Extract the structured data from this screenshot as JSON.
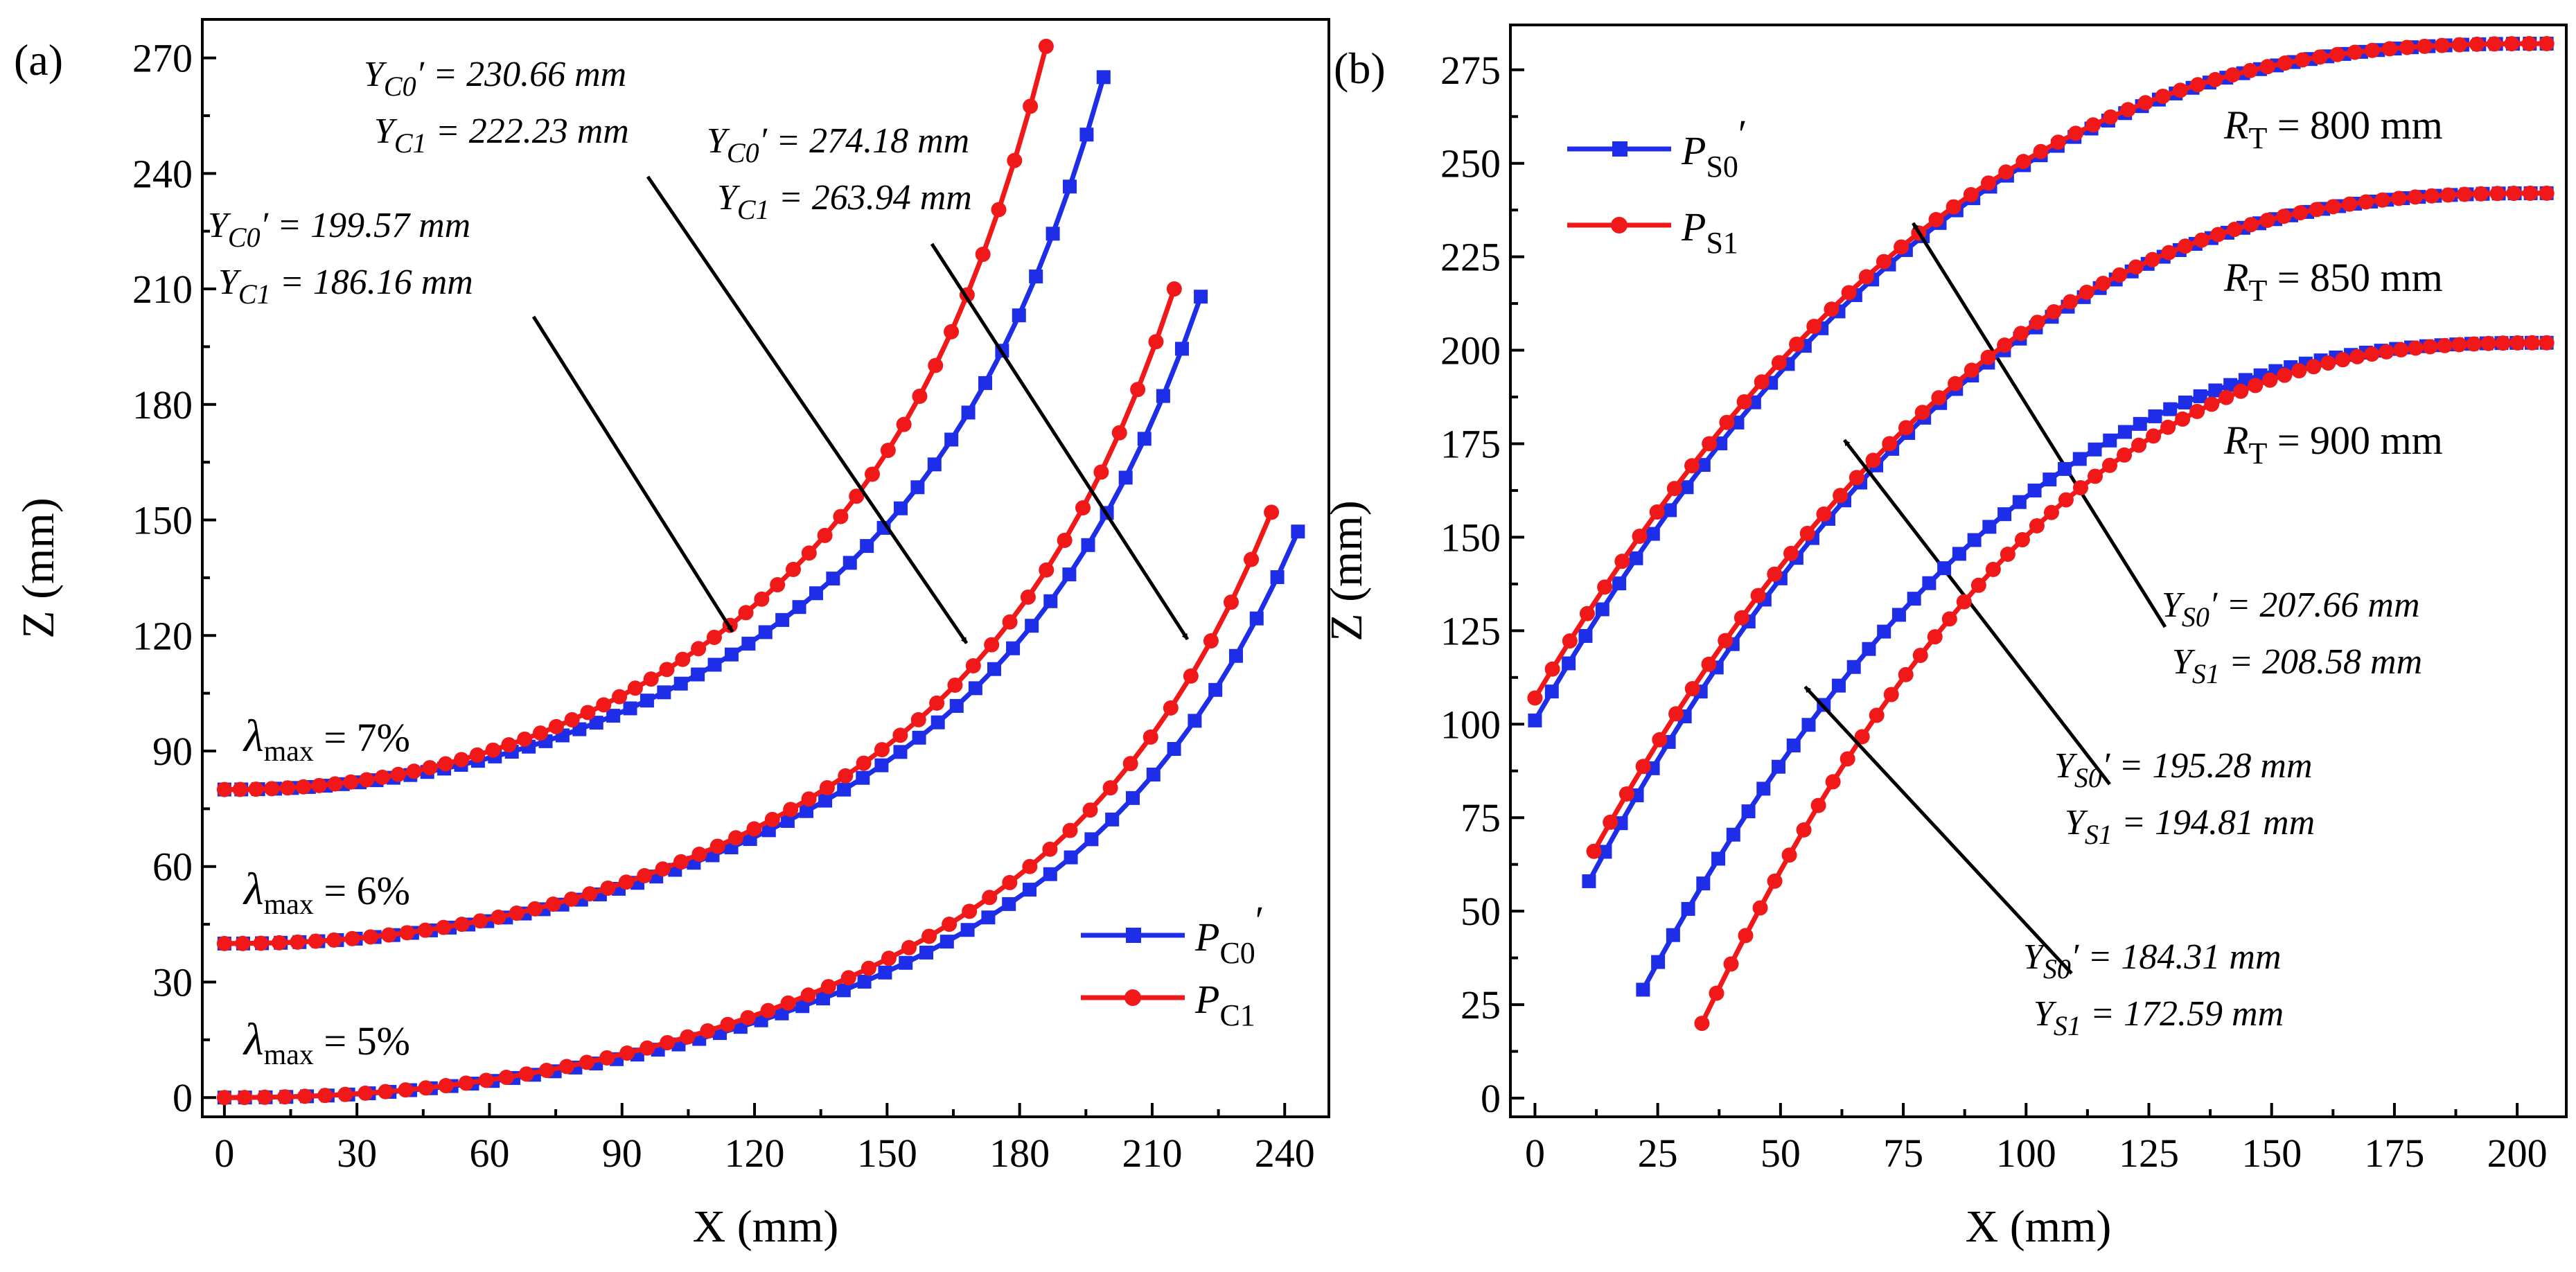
{
  "chart_data": [
    {
      "type": "line",
      "panel": "(a)",
      "xlabel": "X (mm)",
      "ylabel": "Z (mm)",
      "xlim": [
        -5,
        250
      ],
      "ylim": [
        -5,
        280
      ],
      "xticks": [
        0,
        30,
        60,
        90,
        120,
        150,
        180,
        210,
        240
      ],
      "yticks": [
        0,
        30,
        60,
        90,
        120,
        150,
        180,
        210,
        240,
        270
      ],
      "legend": [
        {
          "name": "P_C0'",
          "base": "P",
          "sub": "C0",
          "prime": "′",
          "color": "#1e2ee8",
          "marker": "square"
        },
        {
          "name": "P_C1",
          "base": "P",
          "sub": "C1",
          "prime": "",
          "color": "#f01818",
          "marker": "circle"
        }
      ],
      "curves": [
        {
          "label": {
            "sym": "λ",
            "sub": "max",
            "text": " = 7%"
          },
          "base_z": 80,
          "blue": {
            "x_end": 199,
            "z_end": 265
          },
          "red": {
            "x_end": 186,
            "z_end": 273
          },
          "annotation": {
            "l1_var": "Y",
            "l1_sub": "C0",
            "l1_val": "′ = 199.57 mm",
            "l2_var": "Y",
            "l2_sub": "C1",
            "l2_val": " = 186.16 mm"
          },
          "arrow_to": {
            "x": 115,
            "z": 121
          }
        },
        {
          "label": {
            "sym": "λ",
            "sub": "max",
            "text": " = 6%"
          },
          "base_z": 40,
          "blue": {
            "x_end": 221,
            "z_end": 208
          },
          "red": {
            "x_end": 215,
            "z_end": 210
          },
          "annotation": {
            "l1_var": "Y",
            "l1_sub": "C0",
            "l1_val": "′ = 230.66 mm",
            "l2_var": "Y",
            "l2_sub": "C1",
            "l2_val": " = 222.23 mm"
          },
          "arrow_to": {
            "x": 168,
            "z": 118
          }
        },
        {
          "label": {
            "sym": "λ",
            "sub": "max",
            "text": " = 5%"
          },
          "base_z": 0,
          "blue": {
            "x_end": 243,
            "z_end": 147
          },
          "red": {
            "x_end": 237,
            "z_end": 152
          },
          "annotation": {
            "l1_var": "Y",
            "l1_sub": "C0",
            "l1_val": "′ = 274.18 mm",
            "l2_var": "Y",
            "l2_sub": "C1",
            "l2_val": " = 263.94 mm"
          },
          "arrow_to": {
            "x": 218,
            "z": 119
          }
        }
      ]
    },
    {
      "type": "line",
      "panel": "(b)",
      "xlabel": "X (mm)",
      "ylabel": "Z (mm)",
      "xlim": [
        -5,
        210
      ],
      "ylim": [
        -5,
        287
      ],
      "xticks": [
        0,
        25,
        50,
        75,
        100,
        125,
        150,
        175,
        200
      ],
      "yticks": [
        0,
        25,
        50,
        75,
        100,
        125,
        150,
        175,
        200,
        225,
        250,
        275
      ],
      "legend": [
        {
          "name": "P_S0'",
          "base": "P",
          "sub": "S0",
          "prime": "′",
          "color": "#1e2ee8",
          "marker": "square"
        },
        {
          "name": "P_S1",
          "base": "P",
          "sub": "S1",
          "prime": "",
          "color": "#f01818",
          "marker": "circle"
        }
      ],
      "curves": [
        {
          "radius_label": {
            "var": "R",
            "sub": "T",
            "text": " = 800 mm"
          },
          "R": 800,
          "top_z": 282,
          "blue": {
            "x_start": 0,
            "z_start": 101
          },
          "red": {
            "x_start": 0,
            "z_start": 107
          },
          "annotation": {
            "l1_var": "Y",
            "l1_sub": "S0",
            "l1_val": "′ = 207.66 mm",
            "l2_var": "Y",
            "l2_sub": "S1",
            "l2_val": " = 208.58 mm"
          },
          "arrow_to": {
            "x": 77,
            "z": 234
          }
        },
        {
          "radius_label": {
            "var": "R",
            "sub": "T",
            "text": " = 850 mm"
          },
          "R": 850,
          "top_z": 242,
          "blue": {
            "x_start": 11,
            "z_start": 58
          },
          "red": {
            "x_start": 12,
            "z_start": 66
          },
          "annotation": {
            "l1_var": "Y",
            "l1_sub": "S0",
            "l1_val": "′ = 195.28 mm",
            "l2_var": "Y",
            "l2_sub": "S1",
            "l2_val": " = 194.81 mm"
          },
          "arrow_to": {
            "x": 63,
            "z": 176
          }
        },
        {
          "radius_label": {
            "var": "R",
            "sub": "T",
            "text": " = 900 mm"
          },
          "R": 900,
          "top_z": 202,
          "blue": {
            "x_start": 22,
            "z_start": 29
          },
          "red": {
            "x_start": 34,
            "z_start": 20
          },
          "annotation": {
            "l1_var": "Y",
            "l1_sub": "S0",
            "l1_val": "′ = 184.31 mm",
            "l2_var": "Y",
            "l2_sub": "S1",
            "l2_val": " = 172.59 mm"
          },
          "arrow_to": {
            "x": 55,
            "z": 110
          }
        }
      ]
    }
  ]
}
